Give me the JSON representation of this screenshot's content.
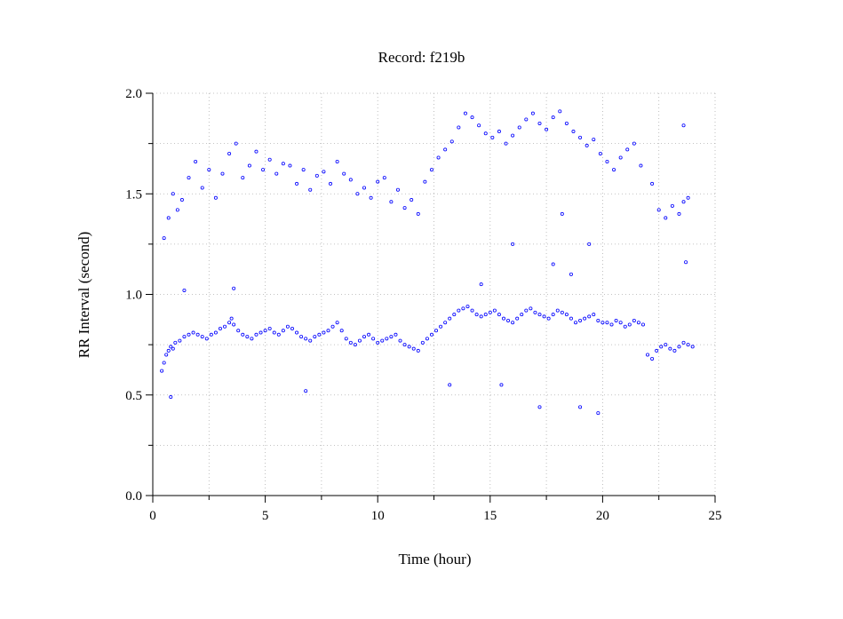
{
  "chart_data": {
    "type": "scatter",
    "title": "Record:  f219b",
    "xlabel": "Time (hour)",
    "ylabel": "RR Interval (second)",
    "xlim": [
      0,
      25
    ],
    "ylim": [
      0.0,
      2.0
    ],
    "x_ticks": [
      0,
      5,
      10,
      15,
      20,
      25
    ],
    "x_tick_labels": [
      "0",
      "5",
      "10",
      "15",
      "20",
      "25"
    ],
    "x_minor_ticks": [
      2.5,
      7.5,
      12.5,
      17.5,
      22.5
    ],
    "y_ticks": [
      0.0,
      0.5,
      1.0,
      1.5,
      2.0
    ],
    "y_tick_labels": [
      "0.0",
      "0.5",
      "1.0",
      "1.5",
      "2.0"
    ],
    "y_minor_ticks": [
      0.25,
      0.75,
      1.25,
      1.75
    ],
    "grid": true,
    "marker": "circle",
    "color": "#0000ff",
    "series": [
      {
        "x": [
          0.4,
          0.5,
          0.6,
          0.7,
          0.8,
          0.9,
          1.0,
          1.2,
          1.4,
          1.6,
          1.8,
          2.0,
          2.2,
          2.4,
          2.6,
          2.8,
          3.0,
          3.2,
          3.4,
          3.5,
          3.6,
          3.8,
          4.0,
          4.2,
          4.4,
          4.6,
          4.8,
          5.0,
          5.2,
          5.4,
          5.6,
          5.8,
          6.0,
          6.2,
          6.4,
          6.6,
          6.8,
          7.0,
          7.2,
          7.4,
          7.6,
          7.8,
          8.0,
          8.2,
          8.4,
          8.6,
          8.8,
          9.0,
          9.2,
          9.4,
          9.6,
          9.8,
          10.0,
          10.2,
          10.4,
          10.6,
          10.8,
          11.0,
          11.2,
          11.4,
          11.6,
          11.8,
          12.0,
          12.2,
          12.4,
          12.6,
          12.8,
          13.0,
          13.2,
          13.4,
          13.6,
          13.8,
          14.0,
          14.2,
          14.4,
          14.6,
          14.8,
          15.0,
          15.2,
          15.4,
          15.6,
          15.8,
          16.0,
          16.2,
          16.4,
          16.6,
          16.8,
          17.0,
          17.2,
          17.4,
          17.6,
          17.8,
          18.0,
          18.2,
          18.4,
          18.6,
          18.8,
          19.0,
          19.2,
          19.4,
          19.6,
          19.8,
          20.0,
          20.2,
          20.4,
          20.6,
          20.8,
          21.0,
          21.2,
          21.4,
          21.6,
          21.8,
          22.0,
          22.2,
          22.4,
          22.6,
          22.8,
          23.0,
          23.2,
          23.4,
          23.6,
          23.8,
          24.0
        ],
        "y": [
          0.62,
          0.66,
          0.7,
          0.72,
          0.74,
          0.73,
          0.76,
          0.77,
          0.79,
          0.8,
          0.81,
          0.8,
          0.79,
          0.78,
          0.8,
          0.81,
          0.83,
          0.84,
          0.86,
          0.88,
          0.85,
          0.82,
          0.8,
          0.79,
          0.78,
          0.8,
          0.81,
          0.82,
          0.83,
          0.81,
          0.8,
          0.82,
          0.84,
          0.83,
          0.81,
          0.79,
          0.78,
          0.77,
          0.79,
          0.8,
          0.81,
          0.82,
          0.84,
          0.86,
          0.82,
          0.78,
          0.76,
          0.75,
          0.77,
          0.79,
          0.8,
          0.78,
          0.76,
          0.77,
          0.78,
          0.79,
          0.8,
          0.77,
          0.75,
          0.74,
          0.73,
          0.72,
          0.76,
          0.78,
          0.8,
          0.82,
          0.84,
          0.86,
          0.88,
          0.9,
          0.92,
          0.93,
          0.94,
          0.92,
          0.9,
          0.89,
          0.9,
          0.91,
          0.92,
          0.9,
          0.88,
          0.87,
          0.86,
          0.88,
          0.9,
          0.92,
          0.93,
          0.91,
          0.9,
          0.89,
          0.88,
          0.9,
          0.92,
          0.91,
          0.9,
          0.88,
          0.86,
          0.87,
          0.88,
          0.89,
          0.9,
          0.87,
          0.86,
          0.86,
          0.85,
          0.87,
          0.86,
          0.84,
          0.85,
          0.87,
          0.86,
          0.85,
          0.7,
          0.68,
          0.72,
          0.74,
          0.75,
          0.73,
          0.72,
          0.74,
          0.76,
          0.75,
          0.74
        ]
      },
      {
        "x": [
          0.5,
          0.7,
          0.9,
          1.1,
          1.3,
          1.6,
          1.9,
          2.2,
          2.5,
          2.8,
          3.1,
          3.4,
          3.7,
          4.0,
          4.3,
          4.6,
          4.9,
          5.2,
          5.5,
          5.8,
          6.1,
          6.4,
          6.7,
          7.0,
          7.3,
          7.6,
          7.9,
          8.2,
          8.5,
          8.8,
          9.1,
          9.4,
          9.7,
          10.0,
          10.3,
          10.6,
          10.9,
          11.2,
          11.5,
          11.8,
          12.1,
          12.4,
          12.7,
          13.0,
          13.3,
          13.6,
          13.9,
          14.2,
          14.5,
          14.8,
          15.1,
          15.4,
          15.7,
          16.0,
          16.3,
          16.6,
          16.9,
          17.2,
          17.5,
          17.8,
          18.1,
          18.4,
          18.7,
          19.0,
          19.3,
          19.6,
          19.9,
          20.2,
          20.5,
          20.8,
          21.1,
          21.4,
          21.7,
          22.2,
          22.5,
          22.8,
          23.1,
          23.4,
          23.6,
          23.8
        ],
        "y": [
          1.28,
          1.38,
          1.5,
          1.42,
          1.47,
          1.58,
          1.66,
          1.53,
          1.62,
          1.48,
          1.6,
          1.7,
          1.75,
          1.58,
          1.64,
          1.71,
          1.62,
          1.67,
          1.6,
          1.65,
          1.64,
          1.55,
          1.62,
          1.52,
          1.59,
          1.61,
          1.55,
          1.66,
          1.6,
          1.57,
          1.5,
          1.53,
          1.48,
          1.56,
          1.58,
          1.46,
          1.52,
          1.43,
          1.47,
          1.4,
          1.56,
          1.62,
          1.68,
          1.72,
          1.76,
          1.83,
          1.9,
          1.88,
          1.84,
          1.8,
          1.78,
          1.81,
          1.75,
          1.79,
          1.83,
          1.87,
          1.9,
          1.85,
          1.82,
          1.88,
          1.91,
          1.85,
          1.81,
          1.78,
          1.74,
          1.77,
          1.7,
          1.66,
          1.62,
          1.68,
          1.72,
          1.75,
          1.64,
          1.55,
          1.42,
          1.38,
          1.44,
          1.4,
          1.46,
          1.48
        ]
      },
      {
        "x": [
          0.8,
          1.4,
          3.6,
          6.8,
          13.2,
          14.6,
          15.5,
          16.0,
          17.2,
          17.8,
          18.2,
          18.6,
          19.0,
          19.4,
          19.8,
          23.6,
          23.7
        ],
        "y": [
          0.49,
          1.02,
          1.03,
          0.52,
          0.55,
          1.05,
          0.55,
          1.25,
          0.44,
          1.15,
          1.4,
          1.1,
          0.44,
          1.25,
          0.41,
          1.84,
          1.16
        ]
      }
    ]
  }
}
